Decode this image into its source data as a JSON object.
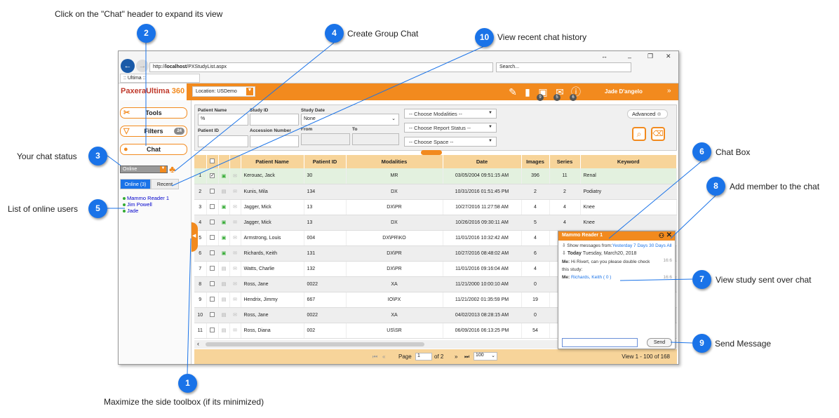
{
  "callouts": {
    "c2": "Click on the \"Chat\" header to expand its view",
    "c4": "Create Group Chat",
    "c10": "View recent chat history",
    "c3": "Your chat status",
    "c5": "List of online users",
    "c6": "Chat Box",
    "c8": "Add member to the chat",
    "c7": "View study sent over chat",
    "c9": "Send Message",
    "c1": "Maximize the side toolbox (if its minimized)"
  },
  "badges": [
    "1",
    "2",
    "3",
    "4",
    "5",
    "6",
    "7",
    "8",
    "9",
    "10"
  ],
  "browser": {
    "url_prefix": "http://",
    "url_host": "localhost",
    "url_path": "/PXStudyList.aspx",
    "search_placeholder": "Search...",
    "tab_title": ":: Ultima ::"
  },
  "app": {
    "logo_a": "PaxeraUltima",
    "logo_b": "360",
    "location": "Location: USDemo",
    "user": "Jade D'angelo",
    "notif_counts": [
      "9",
      "5",
      "6"
    ]
  },
  "sidebar": {
    "tools": "Tools",
    "filters": "Filters",
    "filters_count": "24",
    "chat": "Chat",
    "status": "Online",
    "tab_online": "Online (3)",
    "tab_recent": "Recent",
    "users": [
      "Mammo Reader 1",
      "Jim Powell",
      "Jade"
    ]
  },
  "filter": {
    "patient_name": "Patient Name",
    "patient_name_value": "%",
    "study_id": "Study ID",
    "study_date": "Study Date",
    "study_date_value": "None",
    "patient_id": "Patient ID",
    "accession": "Accession Number",
    "from": "From",
    "to": "To",
    "modalities": "-- Choose Modalities --",
    "report_status": "-- Choose Report Status --",
    "space": "-- Choose Space --",
    "advanced": "Advanced"
  },
  "table": {
    "headers": [
      "Patient Name",
      "Patient ID",
      "Modalities",
      "Date",
      "Images",
      "Series",
      "Keyword"
    ],
    "rows": [
      [
        "1",
        "Kerouac, Jack",
        "30",
        "MR",
        "03/05/2004 09:51:15 AM",
        "396",
        "11",
        "Renal"
      ],
      [
        "2",
        "Kunis, Mila",
        "134",
        "DX",
        "10/31/2016 01:51:45 PM",
        "2",
        "2",
        "Podiatry"
      ],
      [
        "3",
        "Jagger, Mick",
        "13",
        "DX\\PR",
        "10/27/2016 11:27:58 AM",
        "4",
        "4",
        "Knee"
      ],
      [
        "4",
        "Jagger, Mick",
        "13",
        "DX",
        "10/26/2016 09:30:11 AM",
        "5",
        "4",
        "Knee"
      ],
      [
        "5",
        "Armstrong, Louis",
        "004",
        "DX\\PR\\KO",
        "11/01/2016 10:32:42 AM",
        "4",
        "",
        ""
      ],
      [
        "6",
        "Richards, Keith",
        "131",
        "DX\\PR",
        "10/27/2016 08:48:02 AM",
        "6",
        "",
        ""
      ],
      [
        "7",
        "Watts, Charlie",
        "132",
        "DX\\PR",
        "11/01/2016 09:16:04 AM",
        "4",
        "",
        ""
      ],
      [
        "8",
        "Ross, Jane",
        "0022",
        "XA",
        "11/21/2000 10:00:10 AM",
        "0",
        "",
        ""
      ],
      [
        "9",
        "Hendrix, Jimmy",
        "667",
        "IO\\PX",
        "11/21/2002 01:35:59 PM",
        "19",
        "",
        ""
      ],
      [
        "10",
        "Ross, Jane",
        "0022",
        "XA",
        "04/02/2013 08:28:15 AM",
        "0",
        "",
        ""
      ],
      [
        "11",
        "Ross, Diana",
        "002",
        "US\\SR",
        "06/09/2016 06:13:25 PM",
        "54",
        "",
        ""
      ]
    ]
  },
  "pager": {
    "page_label": "Page",
    "page_value": "1",
    "of": "of 2",
    "page_size": "100",
    "summary": "View 1 - 100 of 168"
  },
  "chat": {
    "title": "Mammo Reader 1",
    "show_prefix": "Show messages from:",
    "show_links": "Yesterday 7 Days 30 Days All",
    "today_label": "Today",
    "today_date": "Tuesday, March20, 2018",
    "msg1_from": "Me:",
    "msg1_text": "Hi Rivert, can you please double check this study:",
    "msg1_time": "16:6",
    "msg2_from": "Me:",
    "msg2_link": "Richards, Keith ( 0 )",
    "msg2_time": "16:6",
    "input_value": "",
    "send": "Send"
  }
}
